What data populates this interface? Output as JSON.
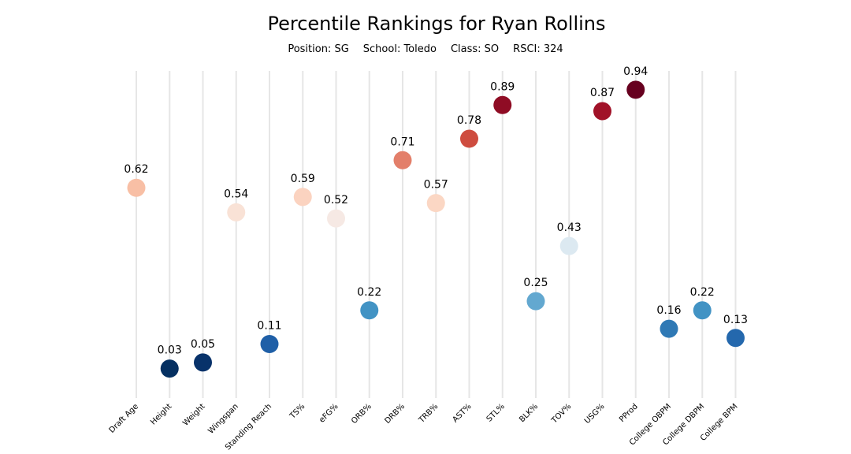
{
  "chart_data": {
    "type": "scatter",
    "title": "Percentile Rankings for Ryan Rollins",
    "subtitle": {
      "position": "Position: SG",
      "school": "School: Toledo",
      "class": "Class: SO",
      "rsci": "RSCI: 324"
    },
    "categories": [
      "Draft Age",
      "Height",
      "Weight",
      "Wingspan",
      "Standing Reach",
      "TS%",
      "eFG%",
      "ORB%",
      "DRB%",
      "TRB%",
      "AST%",
      "STL%",
      "BLK%",
      "TOV%",
      "USG%",
      "PProd",
      "College OBPM",
      "College DBPM",
      "College BPM"
    ],
    "values": [
      0.62,
      0.03,
      0.05,
      0.54,
      0.11,
      0.59,
      0.52,
      0.22,
      0.71,
      0.57,
      0.78,
      0.89,
      0.25,
      0.43,
      0.87,
      0.94,
      0.16,
      0.22,
      0.13
    ],
    "labels": [
      "0.62",
      "0.03",
      "0.05",
      "0.54",
      "0.11",
      "0.59",
      "0.52",
      "0.22",
      "0.71",
      "0.57",
      "0.78",
      "0.89",
      "0.25",
      "0.43",
      "0.87",
      "0.94",
      "0.16",
      "0.22",
      "0.13"
    ],
    "ylim": [
      0,
      1
    ],
    "colormap": "RdBu_r",
    "grid": "vertical lines",
    "colors": [
      "#f8bfa5",
      "#053061",
      "#08326a",
      "#f9e2d6",
      "#1f5fa7",
      "#fbd3c0",
      "#f6e9e4",
      "#4293c4",
      "#e37f6a",
      "#fbd7c4",
      "#ce4c3f",
      "#8f0c24",
      "#63a8d0",
      "#dce9f1",
      "#a11228",
      "#67001f",
      "#2f79b5",
      "#4293c4",
      "#2468ad"
    ]
  }
}
